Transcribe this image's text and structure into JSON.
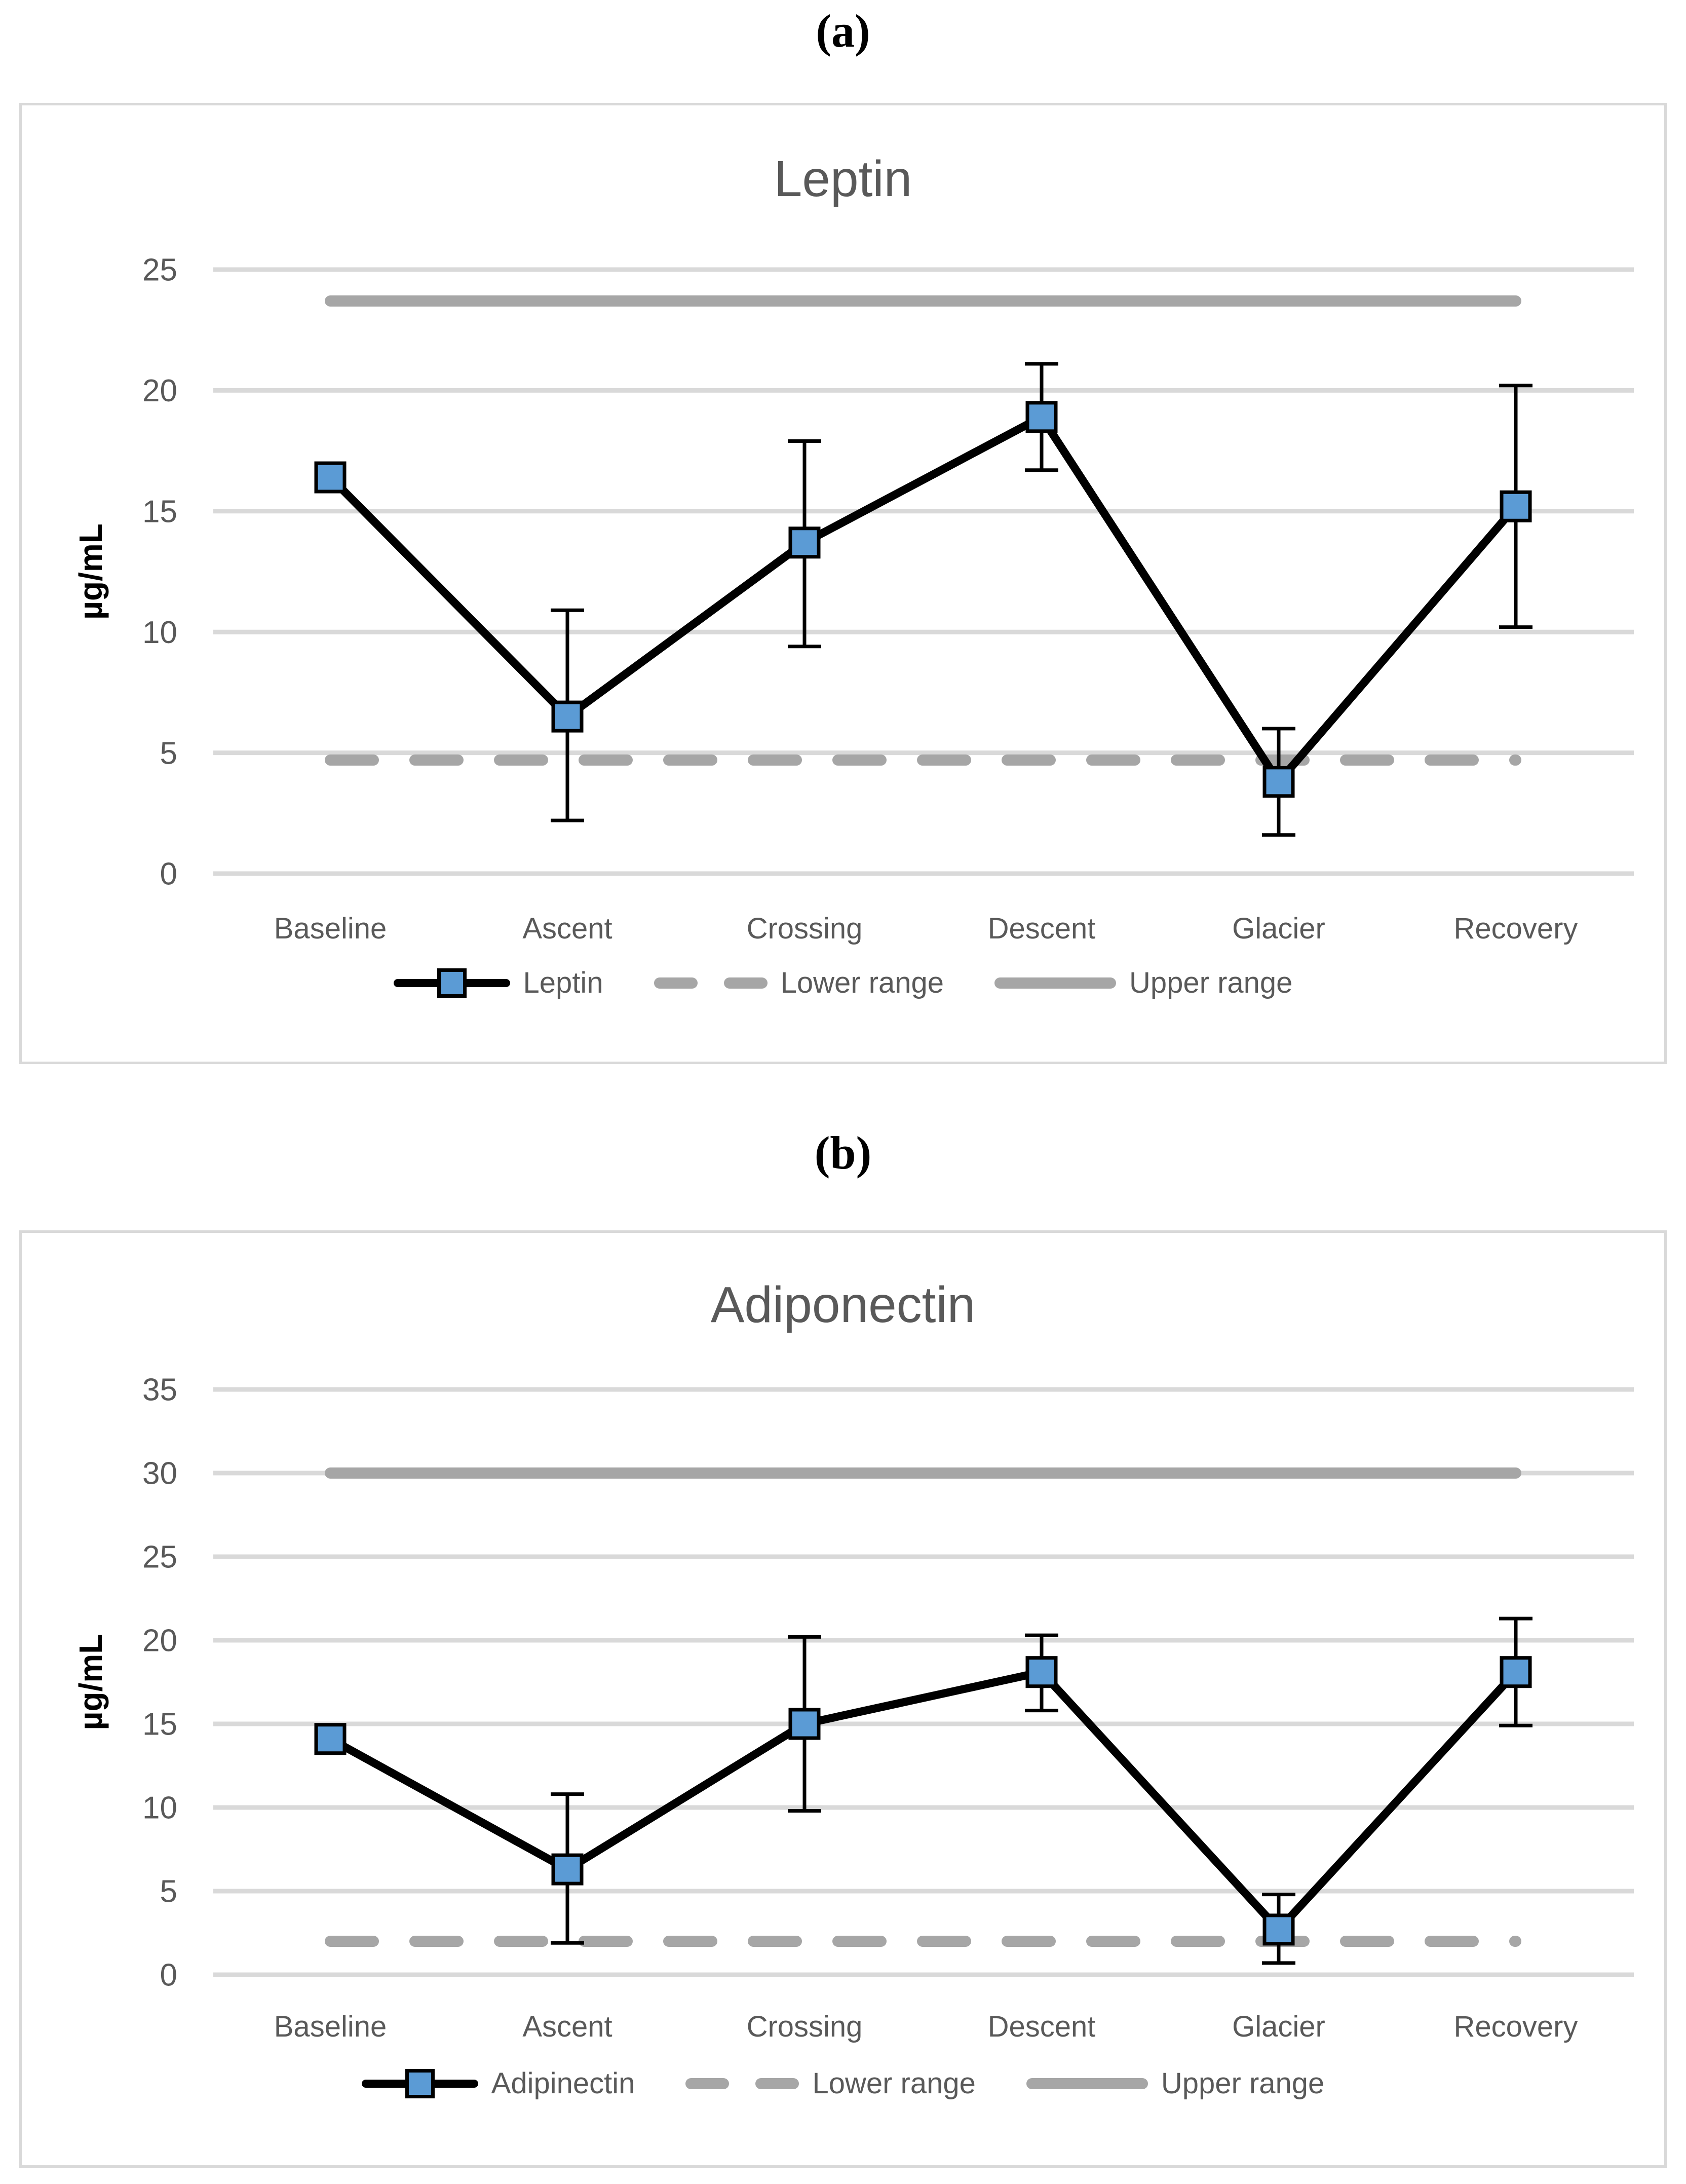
{
  "page": {
    "figure_labels": [
      {
        "label": "(a)"
      },
      {
        "label": "(b)"
      }
    ]
  },
  "colors": {
    "series_line": "#000000",
    "marker_fill": "#5b9bd5",
    "marker_border": "#000000",
    "range_line": "#a6a6a6",
    "gridline": "#d9d9d9",
    "tick_text": "#595959",
    "title_text": "#595959",
    "axis_label_text": "#000000",
    "panel_border": "#d9d9d9"
  },
  "chart_data": [
    {
      "type": "line",
      "title": "Leptin",
      "ylabel": "µg/mL",
      "categories": [
        "Baseline",
        "Ascent",
        "Crossing",
        "Descent",
        "Glacier",
        "Recovery"
      ],
      "series": [
        {
          "name": "Leptin",
          "values": [
            16.4,
            6.5,
            13.7,
            18.9,
            3.8,
            15.2
          ],
          "err_low": [
            null,
            2.2,
            9.4,
            16.7,
            1.6,
            10.2
          ],
          "err_high": [
            null,
            10.9,
            17.9,
            21.1,
            6.0,
            20.2
          ]
        }
      ],
      "ranges": {
        "lower": {
          "label": "Lower range",
          "value": 4.7
        },
        "upper": {
          "label": "Upper range",
          "value": 23.7
        }
      },
      "ylim": [
        0,
        25
      ],
      "y_step": 5,
      "grid": true,
      "legend_position": "bottom"
    },
    {
      "type": "line",
      "title": "Adiponectin",
      "ylabel": "µg/mL",
      "categories": [
        "Baseline",
        "Ascent",
        "Crossing",
        "Descent",
        "Glacier",
        "Recovery"
      ],
      "series": [
        {
          "name": "Adipinectin",
          "values": [
            14.1,
            6.3,
            15.0,
            18.1,
            2.7,
            18.1
          ],
          "err_low": [
            null,
            1.9,
            9.8,
            15.8,
            0.7,
            14.9
          ],
          "err_high": [
            null,
            10.8,
            20.2,
            20.3,
            4.8,
            21.3
          ]
        }
      ],
      "ranges": {
        "lower": {
          "label": "Lower range",
          "value": 2
        },
        "upper": {
          "label": "Upper range",
          "value": 30
        }
      },
      "ylim": [
        0,
        35
      ],
      "y_step": 5,
      "grid": true,
      "legend_position": "bottom"
    }
  ]
}
